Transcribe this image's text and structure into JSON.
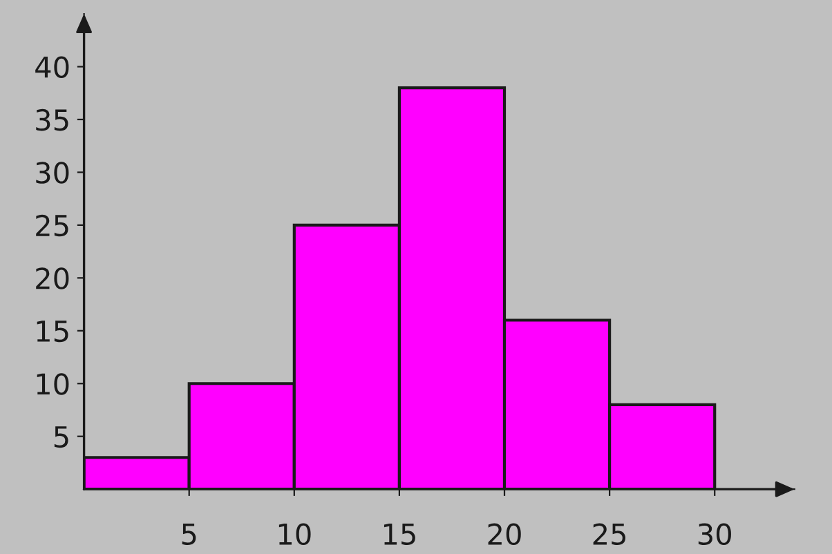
{
  "chart_data": {
    "type": "histogram",
    "bins": [
      0,
      5,
      10,
      15,
      20,
      25,
      30
    ],
    "values": [
      3,
      10,
      25,
      38,
      16,
      8
    ],
    "color": "#ff00ff",
    "xlim": [
      0,
      33.8
    ],
    "ylim": [
      0,
      45
    ],
    "xticks": [
      5,
      10,
      15,
      20,
      25,
      30
    ],
    "yticks": [
      5,
      10,
      15,
      20,
      25,
      30,
      35,
      40
    ],
    "grid": false
  }
}
